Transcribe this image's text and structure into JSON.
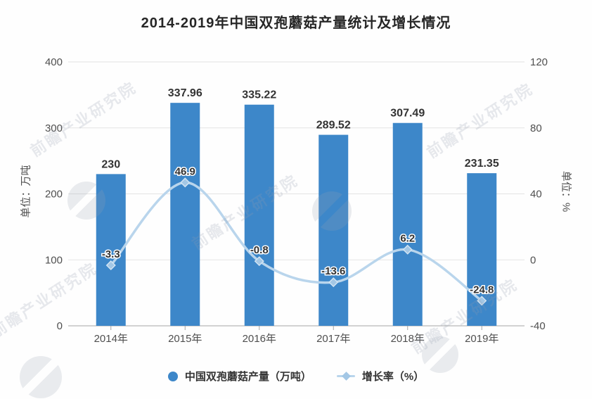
{
  "title": "2014-2019年中国双孢蘑菇产量统计及增长情况",
  "watermark": {
    "text": "前瞻产业研究院"
  },
  "colors": {
    "bar": "#3d87c9",
    "line": "#b9d5ec",
    "line_marker_fill": "#a3c7e5",
    "line_marker_stroke": "#d2e4f3",
    "value_label": "#333333",
    "axis_text": "#4f4f4f",
    "grid": "#e3e3e3",
    "axis_line": "#a6a6a6",
    "title": "#262626"
  },
  "legend": [
    {
      "label": "中国双孢蘑菇产量（万吨）",
      "type": "bar"
    },
    {
      "label": "增长率（%）",
      "type": "line"
    }
  ],
  "chart_data": {
    "type": "bar+line",
    "categories": [
      "2014年",
      "2015年",
      "2016年",
      "2017年",
      "2018年",
      "2019年"
    ],
    "series": [
      {
        "name": "中国双孢蘑菇产量（万吨）",
        "type": "bar",
        "axis": "left",
        "values": [
          230,
          337.96,
          335.22,
          289.52,
          307.49,
          231.35
        ]
      },
      {
        "name": "增长率（%）",
        "type": "line",
        "axis": "right",
        "values": [
          -3.3,
          46.9,
          -0.8,
          -13.6,
          6.2,
          -24.8
        ]
      }
    ],
    "left_axis": {
      "label": "单位：万吨",
      "ticks": [
        0,
        100,
        200,
        300,
        400
      ],
      "range": [
        0,
        400
      ]
    },
    "right_axis": {
      "label": "单位：%",
      "ticks": [
        -40,
        0,
        40,
        80,
        120
      ],
      "range": [
        -40,
        120
      ]
    },
    "grid": true,
    "legend_position": "bottom",
    "value_labels": true
  }
}
